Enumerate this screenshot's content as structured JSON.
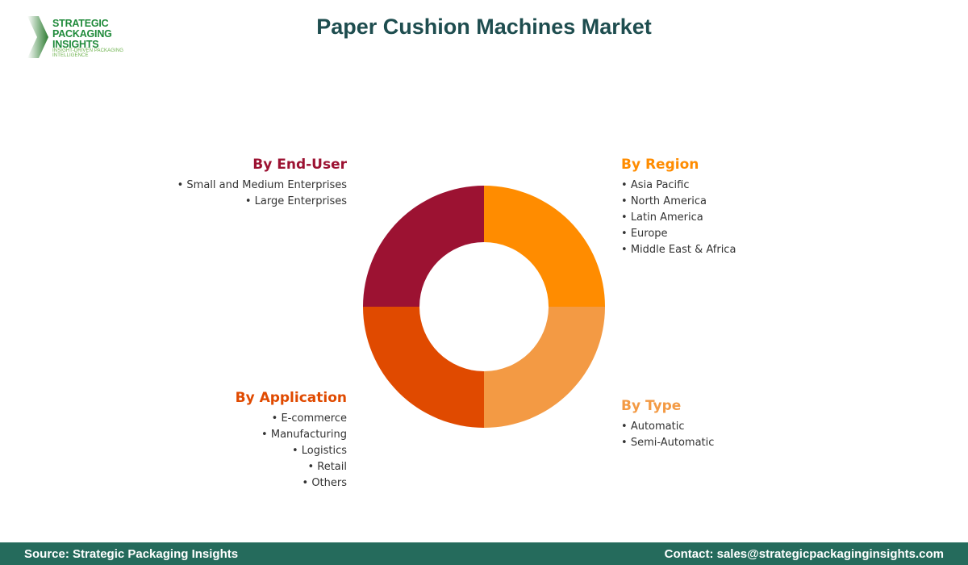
{
  "logo": {
    "line1": "STRATEGIC",
    "line2": "PACKAGING INSIGHTS",
    "tagline": "INSIGHT-DRIVEN PACKAGING INTELLIGENCE"
  },
  "title": "Paper Cushion Machines Market",
  "chart_data": {
    "type": "pie",
    "donut": true,
    "segments": [
      {
        "name": "By Region",
        "value": 25,
        "color": "#ff8c00"
      },
      {
        "name": "By Type",
        "value": 25,
        "color": "#f39a44"
      },
      {
        "name": "By Application",
        "value": 25,
        "color": "#e04a00"
      },
      {
        "name": "By End-User",
        "value": 25,
        "color": "#9c1232"
      }
    ]
  },
  "groups": {
    "region": {
      "title": "By Region",
      "items": [
        "Asia Pacific",
        "North America",
        "Latin America",
        "Europe",
        "Middle East & Africa"
      ]
    },
    "type": {
      "title": "By Type",
      "items": [
        "Automatic",
        "Semi-Automatic"
      ]
    },
    "application": {
      "title": "By Application",
      "items": [
        "E-commerce",
        "Manufacturing",
        "Logistics",
        "Retail",
        "Others"
      ]
    },
    "enduser": {
      "title": "By End-User",
      "items": [
        "Small and Medium Enterprises",
        "Large Enterprises"
      ]
    }
  },
  "footer": {
    "source": "Source: Strategic Packaging Insights",
    "contact": "Contact: sales@strategicpackaginginsights.com"
  }
}
